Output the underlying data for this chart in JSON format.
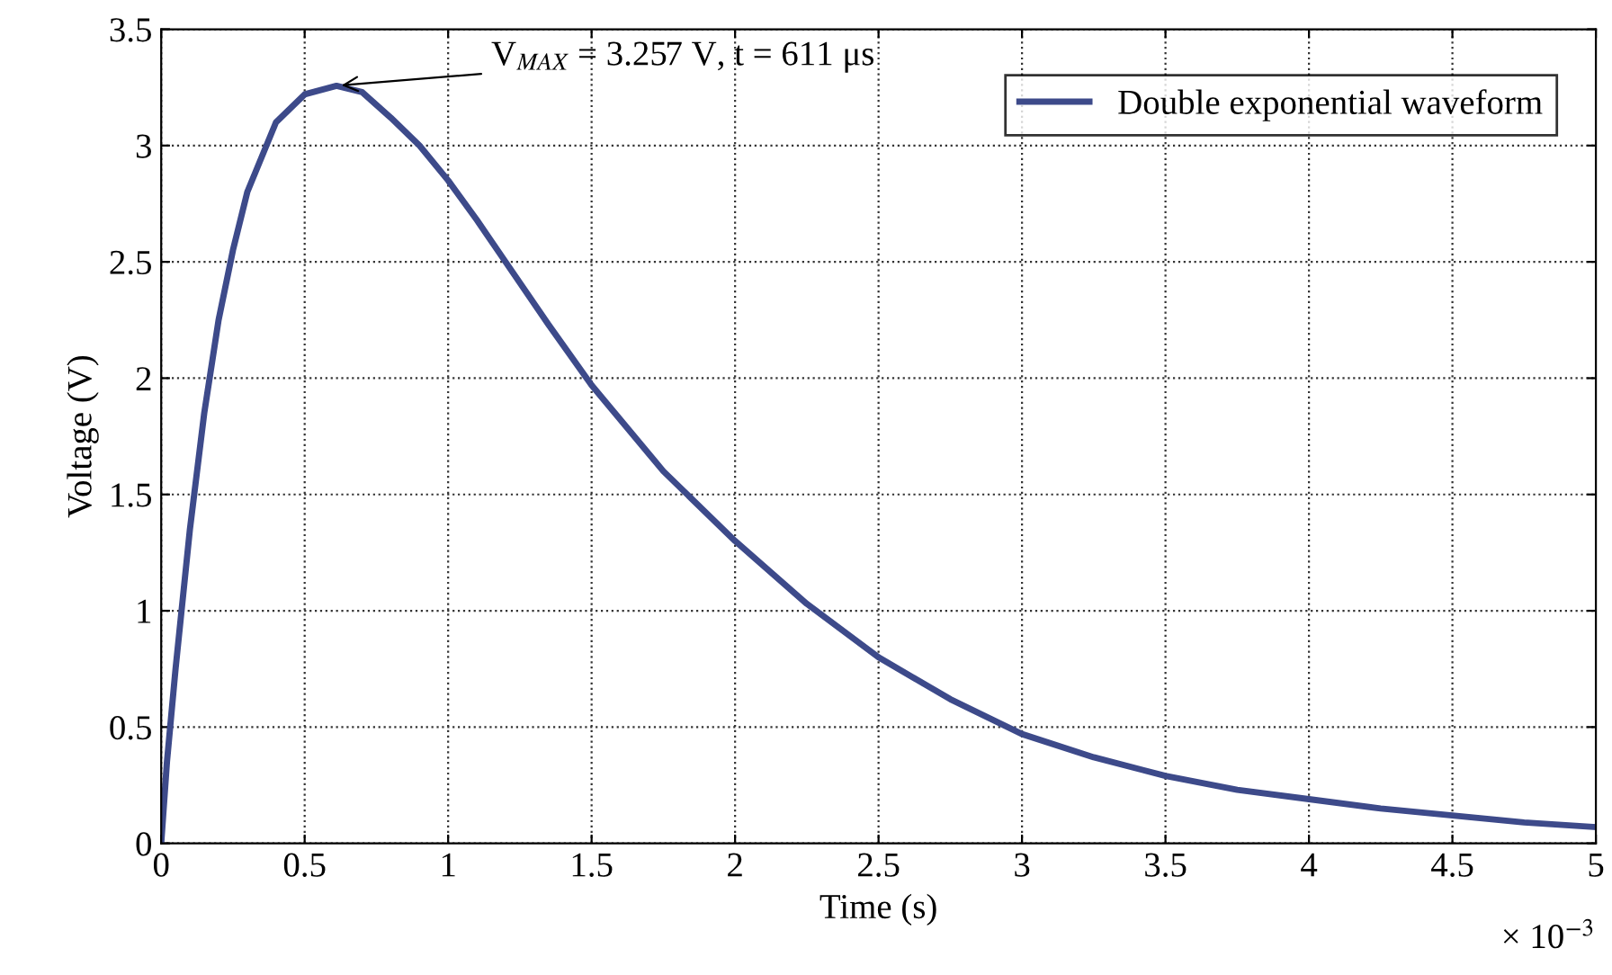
{
  "chart_data": {
    "type": "line",
    "xlabel": "Time (s)",
    "ylabel": "Voltage (V)",
    "x": [
      0,
      0.02,
      0.05,
      0.1,
      0.15,
      0.2,
      0.25,
      0.3,
      0.4,
      0.5,
      0.611,
      0.7,
      0.8,
      0.9,
      1.0,
      1.1,
      1.2,
      1.35,
      1.5,
      1.75,
      2.0,
      2.25,
      2.5,
      2.75,
      3.0,
      3.25,
      3.5,
      3.75,
      4.0,
      4.25,
      4.5,
      4.75,
      5.0
    ],
    "series": [
      {
        "name": "Double exponential waveform",
        "color": "#3d4a8a",
        "values": [
          0,
          0.35,
          0.75,
          1.35,
          1.85,
          2.25,
          2.55,
          2.8,
          3.1,
          3.22,
          3.257,
          3.23,
          3.12,
          3.0,
          2.85,
          2.68,
          2.5,
          2.23,
          1.97,
          1.6,
          1.3,
          1.03,
          0.8,
          0.62,
          0.47,
          0.37,
          0.29,
          0.23,
          0.19,
          0.15,
          0.12,
          0.09,
          0.07
        ]
      }
    ],
    "xlim": [
      0,
      5
    ],
    "xticks": [
      0,
      0.5,
      1,
      1.5,
      2,
      2.5,
      3,
      3.5,
      4,
      4.5,
      5
    ],
    "ylim": [
      0,
      3.5
    ],
    "yticks": [
      0,
      0.5,
      1,
      1.5,
      2,
      2.5,
      3,
      3.5
    ],
    "annotations": [
      {
        "text": "V$_{MAX}$ = 3.257 V, t = 611 μs",
        "x": 0.611,
        "y": 3.257
      },
      "× 10$^{−3}$"
    ],
    "grid": true,
    "legend": "top right",
    "marker": "none",
    "line_style": "solid"
  }
}
